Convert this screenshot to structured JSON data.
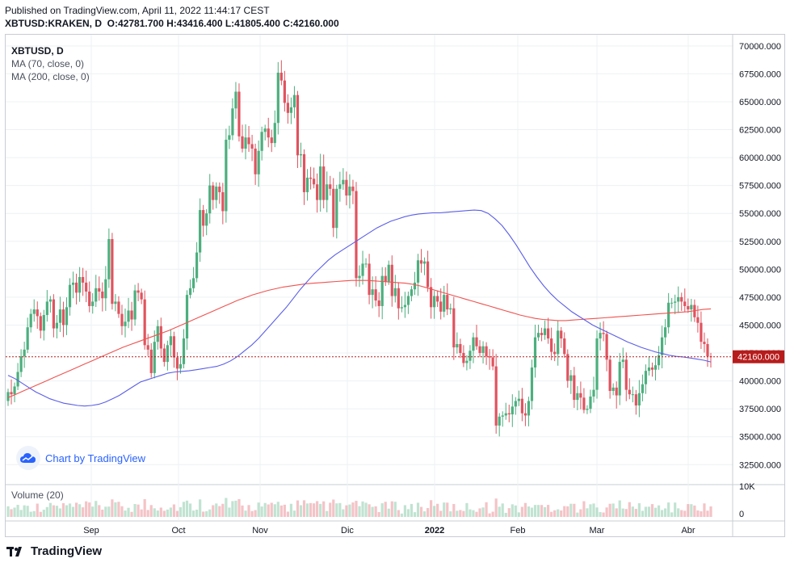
{
  "header": {
    "published": "Published on TradingView.com, April 11, 2022 11:44:17 CEST",
    "symbol": "XBTUSD:KRAKEN, D",
    "o_label": "O:",
    "o": "42781.700",
    "h_label": "H:",
    "h": "43416.400",
    "l_label": "L:",
    "l": "41805.400",
    "c_label": "C:",
    "c": "42160.000"
  },
  "legend": {
    "title": "XBTUSD, D",
    "ma70": "MA (70, close, 0)",
    "ma200": "MA (200, close, 0)"
  },
  "volume_label": "Volume (20)",
  "watermark": "Chart by TradingView",
  "brand": "TradingView",
  "colors": {
    "up": "#26a69a",
    "up_body": "#4caf7e",
    "down": "#e0535f",
    "ma70": "#5b5ee8",
    "ma200": "#ef5350",
    "last_price": "#b71c1c",
    "grid": "#eef0f3",
    "axis_text": "#131722"
  },
  "chart_data": {
    "type": "candlestick",
    "x_ticks": [
      "Sep",
      "Oct",
      "Nov",
      "Dic",
      "2022",
      "Feb",
      "Mar",
      "Abr"
    ],
    "y_ticks": [
      "70000.000",
      "67500.000",
      "65000.000",
      "62500.000",
      "60000.000",
      "57500.000",
      "55000.000",
      "52500.000",
      "50000.000",
      "47500.000",
      "45000.000",
      "42500.000",
      "40000.000",
      "37500.000",
      "35000.000",
      "32500.000"
    ],
    "ylim": [
      31000,
      71000
    ],
    "last_price": 42160,
    "last_price_label": "42160.000",
    "volume_tick": "10K",
    "volume_zero": "0",
    "closes": [
      39000,
      38800,
      39500,
      40800,
      42200,
      42800,
      44800,
      46000,
      46400,
      45800,
      44500,
      45900,
      47100,
      47300,
      44700,
      45200,
      46400,
      45000,
      46600,
      48600,
      48800,
      47900,
      49300,
      48800,
      48000,
      46700,
      47100,
      48300,
      48000,
      47400,
      49100,
      52700,
      46900,
      47100,
      46000,
      44900,
      45300,
      46300,
      45500,
      48100,
      47900,
      47300,
      43200,
      42800,
      40700,
      43500,
      44900,
      42900,
      41700,
      43200,
      44000,
      42100,
      41100,
      41500,
      43800,
      47700,
      48300,
      49200,
      51500,
      55300,
      53900,
      55000,
      57500,
      56200,
      57400,
      56900,
      55200,
      61600,
      62000,
      64400,
      65900,
      61900,
      60800,
      61800,
      61200,
      60800,
      58500,
      60600,
      62300,
      62600,
      61800,
      61300,
      63100,
      67600,
      66900,
      64900,
      64000,
      64500,
      65600,
      60200,
      60300,
      56900,
      58200,
      58100,
      57600,
      56200,
      59200,
      56200,
      57600,
      57200,
      53700,
      57200,
      57600,
      58000,
      56600,
      57400,
      57000,
      49200,
      49400,
      50500,
      50500,
      47700,
      48200,
      47200,
      46700,
      49400,
      48900,
      50400,
      47600,
      48300,
      46500,
      46600,
      46800,
      47600,
      48200,
      48800,
      50800,
      50500,
      50700,
      48400,
      46600,
      47600,
      47100,
      46200,
      47700,
      46400,
      46500,
      43000,
      43300,
      42500,
      41600,
      41800,
      42700,
      43900,
      43100,
      42500,
      43100,
      42200,
      42100,
      41300,
      36000,
      36800,
      36900,
      37100,
      37000,
      37700,
      38200,
      38400,
      37100,
      36900,
      38200,
      41200,
      43900,
      44300,
      44100,
      44700,
      43800,
      42600,
      42400,
      44500,
      43800,
      42400,
      40000,
      40500,
      38300,
      38900,
      38500,
      37400,
      37500,
      38600,
      39200,
      43800,
      44300,
      44200,
      41900,
      39100,
      39400,
      38700,
      41700,
      41900,
      39200,
      38800,
      38800,
      37800,
      38900,
      39700,
      40900,
      41200,
      41000,
      41400,
      42300,
      43900,
      44800,
      47000,
      47000,
      47100,
      47500,
      47100,
      46700,
      46400,
      46800,
      45700,
      45200,
      43500,
      43300,
      42200,
      42160
    ],
    "ma70": [
      40500,
      40200,
      39800,
      39400,
      39000,
      38700,
      38400,
      38200,
      38000,
      37900,
      37800,
      37750,
      37800,
      37900,
      38100,
      38400,
      38700,
      39100,
      39500,
      39900,
      40100,
      40300,
      40500,
      40700,
      40800,
      40850,
      40900,
      41000,
      41100,
      41200,
      41300,
      41500,
      41800,
      42200,
      42700,
      43200,
      43800,
      44500,
      45200,
      45900,
      46600,
      47400,
      48200,
      48900,
      49600,
      50200,
      50800,
      51300,
      51700,
      52100,
      52500,
      52900,
      53300,
      53700,
      54000,
      54300,
      54500,
      54700,
      54850,
      54950,
      55000,
      55050,
      55050,
      55100,
      55150,
      55200,
      55250,
      55300,
      55250,
      55000,
      54500,
      53900,
      53100,
      52200,
      51200,
      50200,
      49300,
      48500,
      47800,
      47200,
      46700,
      46200,
      45800,
      45400,
      45000,
      44700,
      44400,
      44100,
      43800,
      43500,
      43250,
      43000,
      42800,
      42600,
      42450,
      42300,
      42200,
      42150,
      42050,
      41950,
      41850,
      41700
    ],
    "ma200": [
      38500,
      38800,
      39100,
      39400,
      39700,
      40000,
      40300,
      40600,
      40900,
      41200,
      41500,
      41800,
      42100,
      42400,
      42700,
      43000,
      43250,
      43500,
      43750,
      44000,
      44250,
      44500,
      44800,
      45100,
      45400,
      45700,
      46000,
      46300,
      46600,
      46900,
      47200,
      47450,
      47700,
      47900,
      48100,
      48250,
      48400,
      48500,
      48600,
      48700,
      48750,
      48800,
      48850,
      48900,
      48950,
      49000,
      49000,
      49000,
      48950,
      48900,
      48850,
      48800,
      48750,
      48650,
      48500,
      48300,
      48100,
      47900,
      47700,
      47500,
      47300,
      47100,
      46900,
      46700,
      46500,
      46300,
      46100,
      45900,
      45750,
      45600,
      45500,
      45450,
      45400,
      45400,
      45450,
      45500,
      45550,
      45600,
      45650,
      45700,
      45750,
      45800,
      45850,
      45900,
      45950,
      46000,
      46050,
      46100,
      46150,
      46200,
      46300,
      46400,
      46450
    ]
  }
}
